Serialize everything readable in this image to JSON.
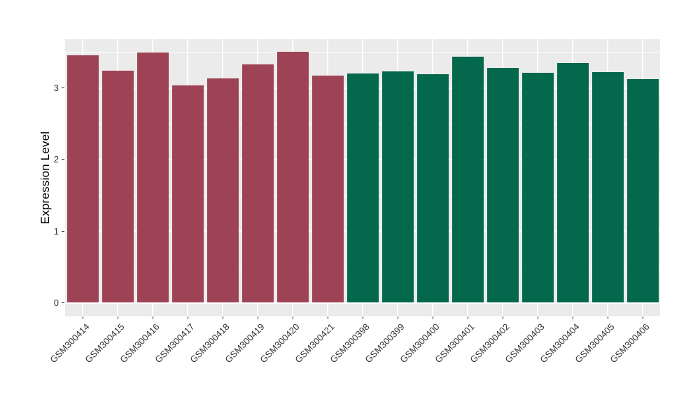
{
  "chart_data": {
    "type": "bar",
    "title": "",
    "xlabel": "",
    "ylabel": "Expression Level",
    "ylim": [
      0,
      3.69
    ],
    "yticks": [
      0,
      1,
      2,
      3
    ],
    "yminorticks": [
      0.5,
      1.5,
      2.5,
      3.5
    ],
    "legend": "none",
    "grid": "white major and minor horizontal lines, white vertical major lines at category centers, on gray panel",
    "bar_width_fraction": 0.9,
    "categories": [
      "GSM300414",
      "GSM300415",
      "GSM300416",
      "GSM300417",
      "GSM300418",
      "GSM300419",
      "GSM300420",
      "GSM300421",
      "GSM300398",
      "GSM300399",
      "GSM300400",
      "GSM300401",
      "GSM300402",
      "GSM300403",
      "GSM300404",
      "GSM300405",
      "GSM300406"
    ],
    "bars": [
      {
        "label": "GSM300414",
        "value": 3.46,
        "group": "group1"
      },
      {
        "label": "GSM300415",
        "value": 3.24,
        "group": "group1"
      },
      {
        "label": "GSM300416",
        "value": 3.49,
        "group": "group1"
      },
      {
        "label": "GSM300417",
        "value": 3.04,
        "group": "group1"
      },
      {
        "label": "GSM300418",
        "value": 3.13,
        "group": "group1"
      },
      {
        "label": "GSM300419",
        "value": 3.33,
        "group": "group1"
      },
      {
        "label": "GSM300420",
        "value": 3.5,
        "group": "group1"
      },
      {
        "label": "GSM300421",
        "value": 3.17,
        "group": "group1"
      },
      {
        "label": "GSM300398",
        "value": 3.2,
        "group": "group2"
      },
      {
        "label": "GSM300399",
        "value": 3.23,
        "group": "group2"
      },
      {
        "label": "GSM300400",
        "value": 3.19,
        "group": "group2"
      },
      {
        "label": "GSM300401",
        "value": 3.44,
        "group": "group2"
      },
      {
        "label": "GSM300402",
        "value": 3.28,
        "group": "group2"
      },
      {
        "label": "GSM300403",
        "value": 3.21,
        "group": "group2"
      },
      {
        "label": "GSM300404",
        "value": 3.35,
        "group": "group2"
      },
      {
        "label": "GSM300405",
        "value": 3.22,
        "group": "group2"
      },
      {
        "label": "GSM300406",
        "value": 3.12,
        "group": "group2"
      }
    ],
    "group_colors": {
      "group1": "#9D4355",
      "group2": "#03684C"
    },
    "colors": {
      "panel_background": "#EBEBEB",
      "gridline": "#FFFFFF",
      "tick_mark": "#333333",
      "axis_text": "#333333",
      "axis_title": "#000000",
      "figure_background": "#FFFFFF"
    }
  }
}
